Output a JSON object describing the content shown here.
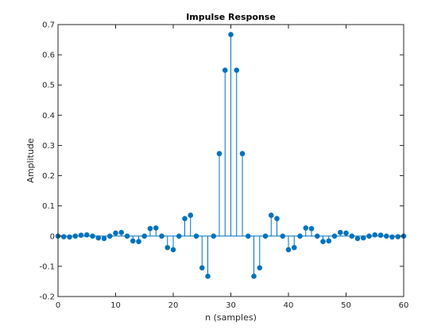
{
  "chart_data": {
    "type": "stem",
    "title": "Impulse Response",
    "xlabel": "n (samples)",
    "ylabel": "Amplitude",
    "xlim": [
      0,
      60
    ],
    "ylim": [
      -0.2,
      0.7
    ],
    "xticks": [
      0,
      10,
      20,
      30,
      40,
      50,
      60
    ],
    "xtick_labels": [
      "0",
      "10",
      "20",
      "30",
      "40",
      "50",
      "60"
    ],
    "yticks": [
      -0.2,
      -0.1,
      0,
      0.1,
      0.2,
      0.3,
      0.4,
      0.5,
      0.6,
      0.7
    ],
    "ytick_labels": [
      "-0.2",
      "-0.1",
      "0",
      "0.1",
      "0.2",
      "0.3",
      "0.4",
      "0.5",
      "0.6",
      "0.7"
    ],
    "grid": false,
    "series_color": "#0072BD",
    "x": [
      0,
      1,
      2,
      3,
      4,
      5,
      6,
      7,
      8,
      9,
      10,
      11,
      12,
      13,
      14,
      15,
      16,
      17,
      18,
      19,
      20,
      21,
      22,
      23,
      24,
      25,
      26,
      27,
      28,
      29,
      30,
      31,
      32,
      33,
      34,
      35,
      36,
      37,
      38,
      39,
      40,
      41,
      42,
      43,
      44,
      45,
      46,
      47,
      48,
      49,
      50,
      51,
      52,
      53,
      54,
      55,
      56,
      57,
      58,
      59,
      60
    ],
    "y": [
      0,
      -0.002,
      -0.003,
      0,
      0.003,
      0.004,
      0,
      -0.006,
      -0.008,
      0,
      0.01,
      0.012,
      0,
      -0.016,
      -0.018,
      0,
      0.025,
      0.027,
      0,
      -0.038,
      -0.045,
      0,
      0.058,
      0.069,
      0,
      -0.105,
      -0.133,
      0,
      0.273,
      0.549,
      0.667,
      0.549,
      0.273,
      0,
      -0.133,
      -0.105,
      0,
      0.069,
      0.058,
      0,
      -0.045,
      -0.038,
      0,
      0.027,
      0.025,
      0,
      -0.018,
      -0.016,
      0,
      0.012,
      0.01,
      0,
      -0.008,
      -0.006,
      0,
      0.004,
      0.003,
      0,
      -0.003,
      -0.002,
      0
    ]
  }
}
